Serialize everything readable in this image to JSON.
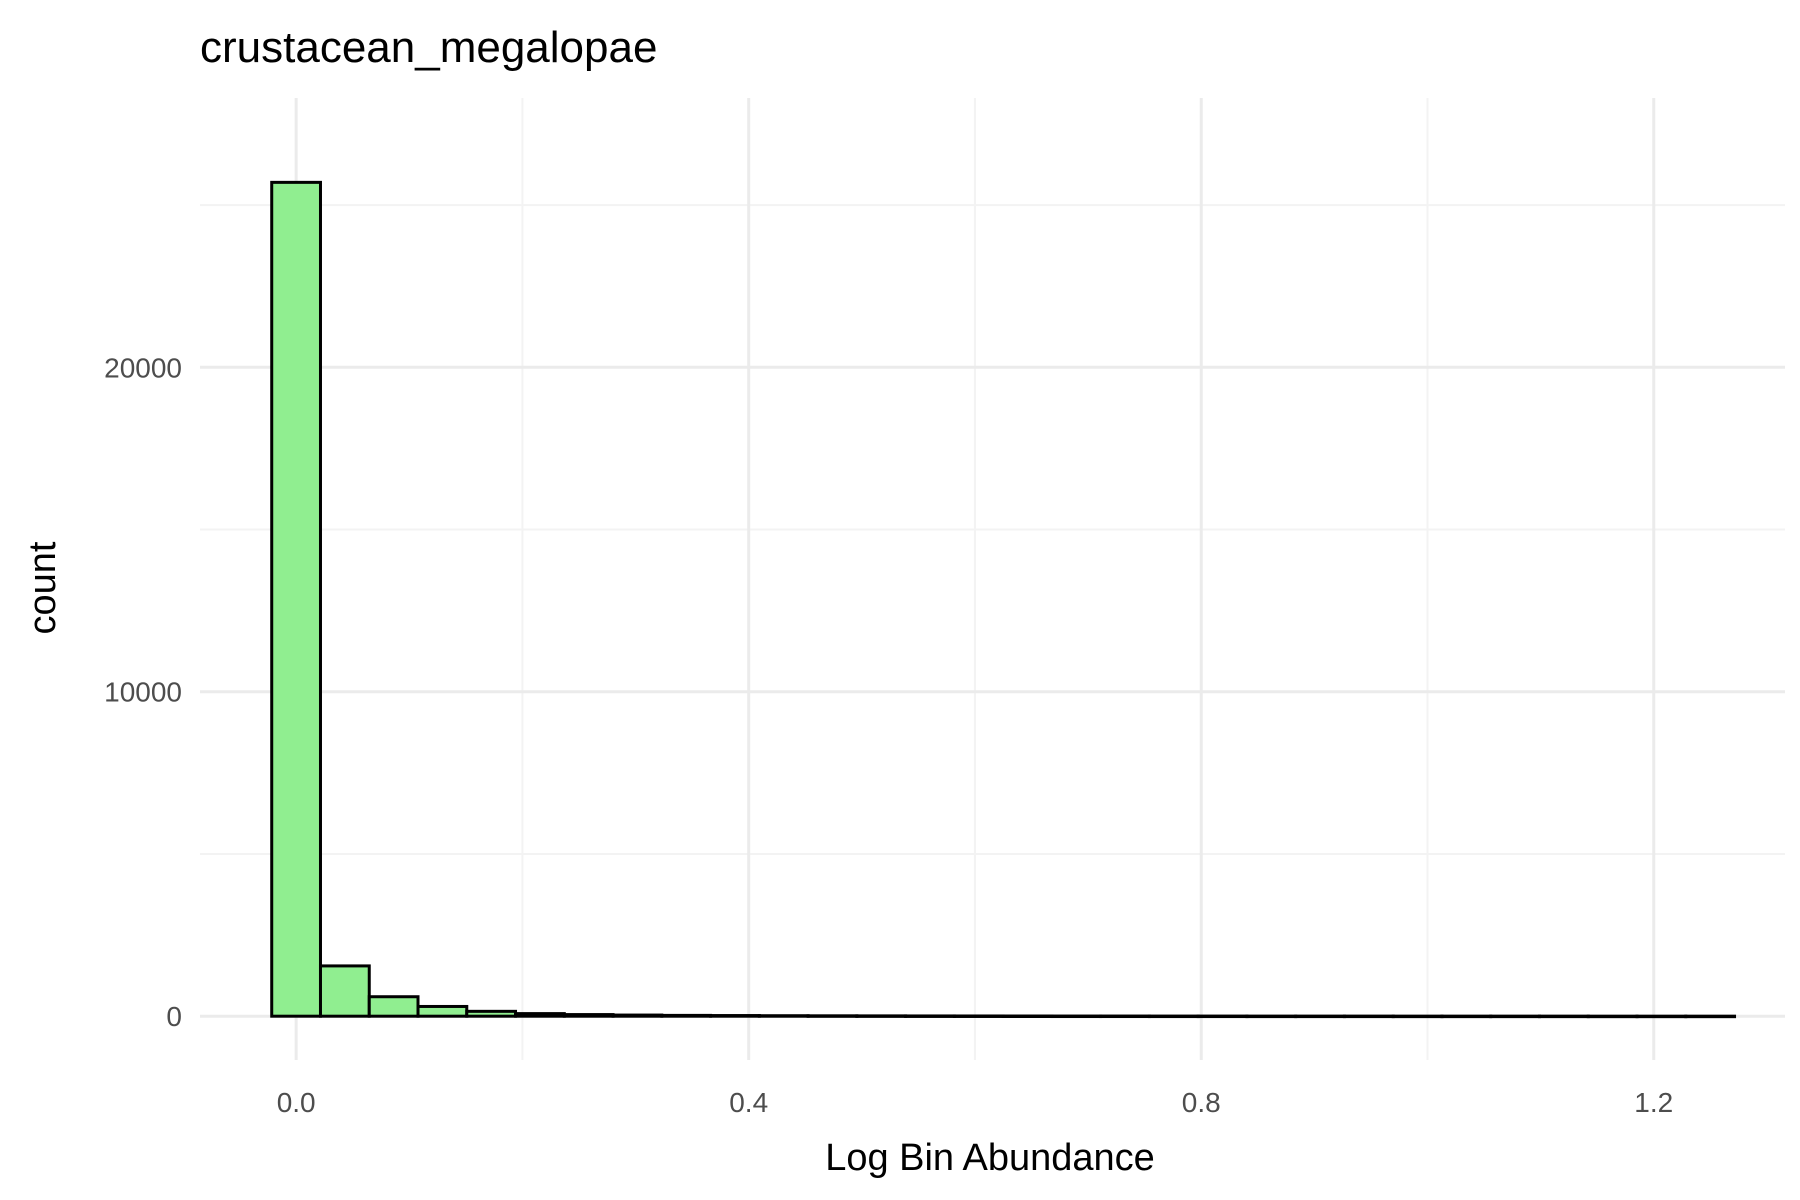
{
  "chart_data": {
    "type": "bar",
    "title": "crustacean_megalopae",
    "xlabel": "Log Bin Abundance",
    "ylabel": "count",
    "xlim": [
      -0.085,
      1.316
    ],
    "ylim": [
      -1350,
      28300
    ],
    "x_ticks": [
      0.0,
      0.4,
      0.8,
      1.2
    ],
    "x_tick_labels": [
      "0.0",
      "0.4",
      "0.8",
      "1.2"
    ],
    "y_ticks": [
      0,
      10000,
      20000
    ],
    "y_tick_labels": [
      "0",
      "10000",
      "20000"
    ],
    "grid": true,
    "bin_width": 0.0431,
    "bins_x_start": -0.0216,
    "values": [
      25700,
      1550,
      600,
      300,
      150,
      80,
      50,
      35,
      25,
      20,
      15,
      12,
      10,
      8,
      7,
      6,
      5,
      5,
      4,
      4,
      3,
      3,
      3,
      2,
      2,
      2,
      2,
      1,
      1,
      1
    ],
    "fill_color": "#90ee90",
    "edge_color": "#000000"
  }
}
